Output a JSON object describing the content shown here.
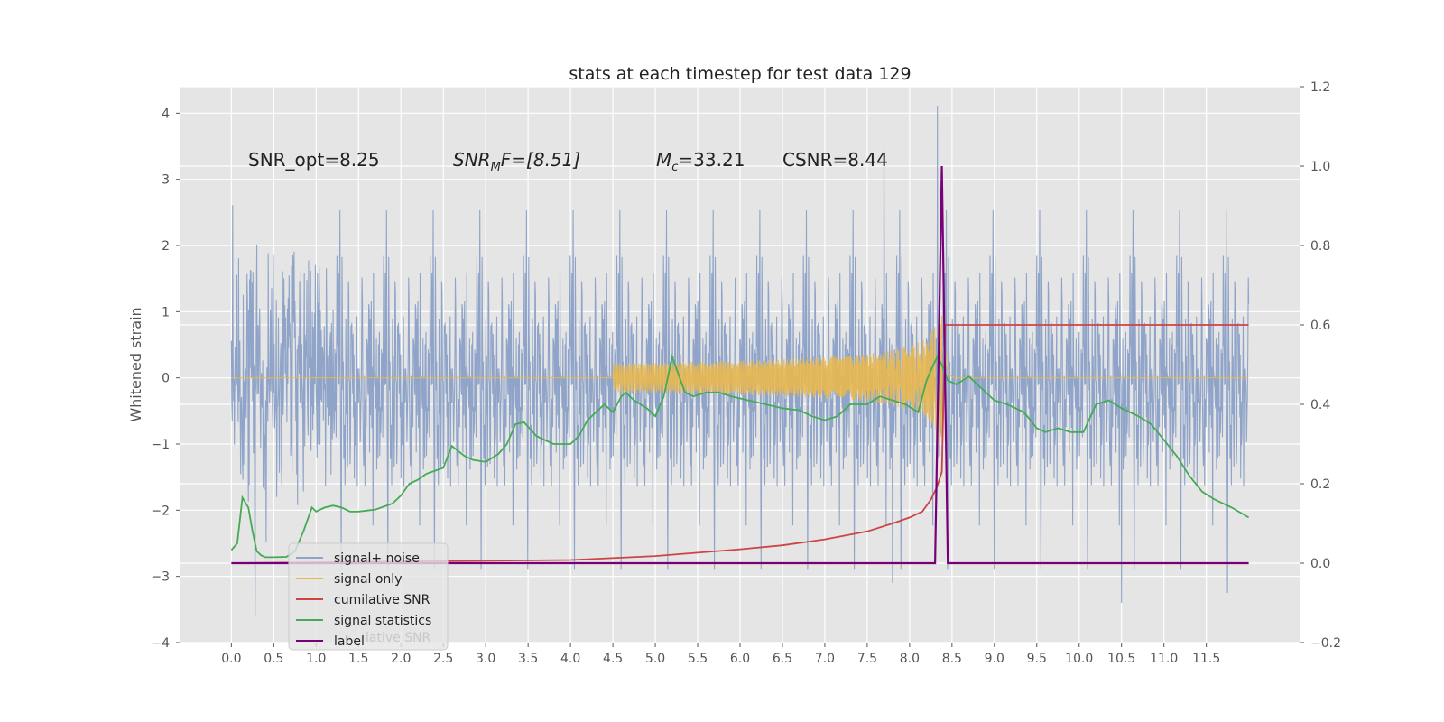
{
  "chart_data": {
    "type": "line",
    "title": "stats at each timestep for test data 129",
    "ylabel": "Whitened strain",
    "xlim": [
      -0.6,
      12.6
    ],
    "ylim": [
      -4,
      4.4
    ],
    "y2lim": [
      -0.2,
      1.2
    ],
    "x_ticks": [
      0.0,
      0.5,
      1.0,
      1.5,
      2.0,
      2.5,
      3.0,
      3.5,
      4.0,
      4.5,
      5.0,
      5.5,
      6.0,
      6.5,
      7.0,
      7.5,
      8.0,
      8.5,
      9.0,
      9.5,
      10.0,
      10.5,
      11.0,
      11.5
    ],
    "x_tick_labels": [
      "0.0",
      "0.5",
      "1.0",
      "1.5",
      "2.0",
      "2.5",
      "3.0",
      "3.5",
      "4.0",
      "4.5",
      "5.0",
      "5.5",
      "6.0",
      "6.5",
      "7.0",
      "7.5",
      "8.0",
      "8.5",
      "9.0",
      "9.5",
      "10.0",
      "10.5",
      "11.0",
      "11.5"
    ],
    "y_ticks": [
      4,
      3,
      2,
      1,
      0,
      -1,
      -2,
      -3,
      -4
    ],
    "y_tick_labels": [
      "4",
      "3",
      "2",
      "1",
      "0",
      "−1",
      "−2",
      "−3",
      "−4"
    ],
    "y2_ticks": [
      1.2,
      1.0,
      0.8,
      0.6,
      0.4,
      0.2,
      0.0,
      -0.2
    ],
    "y2_tick_labels": [
      "1.2",
      "1.0",
      "0.8",
      "0.6",
      "0.4",
      "0.2",
      "0.0",
      "−0.2"
    ],
    "grid": true,
    "legend_position": "lower-left",
    "annotations": {
      "snr_opt": "SNR_opt=8.25",
      "snr_mf_main": "SNR",
      "snr_mf_sub": "M",
      "snr_mf_rest": "F=[8.51]",
      "mc_main": "M",
      "mc_sub": "c",
      "mc_rest": "=33.21",
      "csnr": "CSNR=8.44"
    },
    "series": [
      {
        "name": "signal+ noise",
        "color": "#8fa4c8",
        "axis": "left",
        "description_envelope": {
          "x_range": [
            0,
            12
          ],
          "typical_amplitude": 1.9,
          "max": 4.1,
          "min": -3.6
        },
        "peaks": [
          {
            "x": 0.28,
            "y": -3.6
          },
          {
            "x": 7.7,
            "y": 3.45
          },
          {
            "x": 7.8,
            "y": -3.1
          },
          {
            "x": 8.33,
            "y": 4.1
          },
          {
            "x": 10.5,
            "y": -3.4
          },
          {
            "x": 11.75,
            "y": -3.25
          }
        ]
      },
      {
        "name": "signal only",
        "color": "#e8b84f",
        "axis": "left",
        "chirp": {
          "start_x": 4.5,
          "merger_x": 8.4,
          "end_x": 8.55,
          "peak_amplitude": 1.0
        }
      },
      {
        "name": "cumilative SNR",
        "color": "#cc4444",
        "axis": "right",
        "x": [
          0.0,
          1.0,
          2.0,
          3.0,
          4.0,
          5.0,
          6.0,
          6.5,
          7.0,
          7.5,
          7.8,
          8.0,
          8.15,
          8.25,
          8.32,
          8.38,
          8.42,
          8.45,
          12.0
        ],
        "y": [
          0.0,
          0.002,
          0.004,
          0.006,
          0.008,
          0.018,
          0.035,
          0.045,
          0.06,
          0.08,
          0.1,
          0.115,
          0.13,
          0.16,
          0.19,
          0.23,
          0.6,
          0.6,
          0.6
        ]
      },
      {
        "name": "signal statistics",
        "color": "#44aa55",
        "axis": "right",
        "x": [
          0.0,
          0.07,
          0.13,
          0.2,
          0.25,
          0.3,
          0.35,
          0.4,
          0.5,
          0.65,
          0.75,
          0.85,
          0.95,
          1.0,
          1.1,
          1.2,
          1.3,
          1.4,
          1.5,
          1.7,
          1.9,
          2.0,
          2.1,
          2.2,
          2.3,
          2.5,
          2.6,
          2.75,
          2.85,
          3.0,
          3.15,
          3.25,
          3.35,
          3.45,
          3.6,
          3.8,
          4.0,
          4.1,
          4.2,
          4.4,
          4.5,
          4.6,
          4.65,
          4.75,
          4.9,
          5.0,
          5.1,
          5.2,
          5.25,
          5.35,
          5.45,
          5.6,
          5.75,
          5.9,
          6.1,
          6.3,
          6.5,
          6.7,
          6.85,
          7.0,
          7.15,
          7.3,
          7.5,
          7.65,
          7.8,
          7.95,
          8.1,
          8.2,
          8.28,
          8.33,
          8.38,
          8.45,
          8.55,
          8.7,
          8.85,
          9.0,
          9.15,
          9.35,
          9.5,
          9.6,
          9.75,
          9.9,
          10.05,
          10.2,
          10.35,
          10.5,
          10.7,
          10.85,
          11.0,
          11.15,
          11.3,
          11.45,
          11.6,
          11.8,
          12.0
        ],
        "y": [
          0.033,
          0.05,
          0.165,
          0.14,
          0.08,
          0.03,
          0.02,
          0.015,
          0.015,
          0.016,
          0.03,
          0.08,
          0.14,
          0.13,
          0.14,
          0.145,
          0.14,
          0.13,
          0.13,
          0.135,
          0.15,
          0.17,
          0.2,
          0.21,
          0.225,
          0.24,
          0.295,
          0.27,
          0.26,
          0.255,
          0.275,
          0.3,
          0.35,
          0.355,
          0.32,
          0.3,
          0.3,
          0.32,
          0.36,
          0.4,
          0.38,
          0.42,
          0.43,
          0.41,
          0.39,
          0.37,
          0.42,
          0.52,
          0.49,
          0.43,
          0.42,
          0.43,
          0.43,
          0.42,
          0.41,
          0.4,
          0.39,
          0.385,
          0.37,
          0.36,
          0.37,
          0.4,
          0.4,
          0.42,
          0.41,
          0.4,
          0.38,
          0.46,
          0.5,
          0.52,
          0.5,
          0.46,
          0.45,
          0.47,
          0.44,
          0.41,
          0.4,
          0.38,
          0.34,
          0.33,
          0.34,
          0.33,
          0.33,
          0.4,
          0.41,
          0.39,
          0.37,
          0.35,
          0.31,
          0.27,
          0.22,
          0.18,
          0.16,
          0.14,
          0.115
        ]
      },
      {
        "name": "label",
        "color": "#770077",
        "axis": "right",
        "x": [
          0.0,
          8.3,
          8.38,
          8.45,
          12.0
        ],
        "y": [
          0.0,
          0.0,
          1.0,
          0.0,
          0.0
        ]
      }
    ],
    "hidden_legend_text": "lative SNR"
  }
}
